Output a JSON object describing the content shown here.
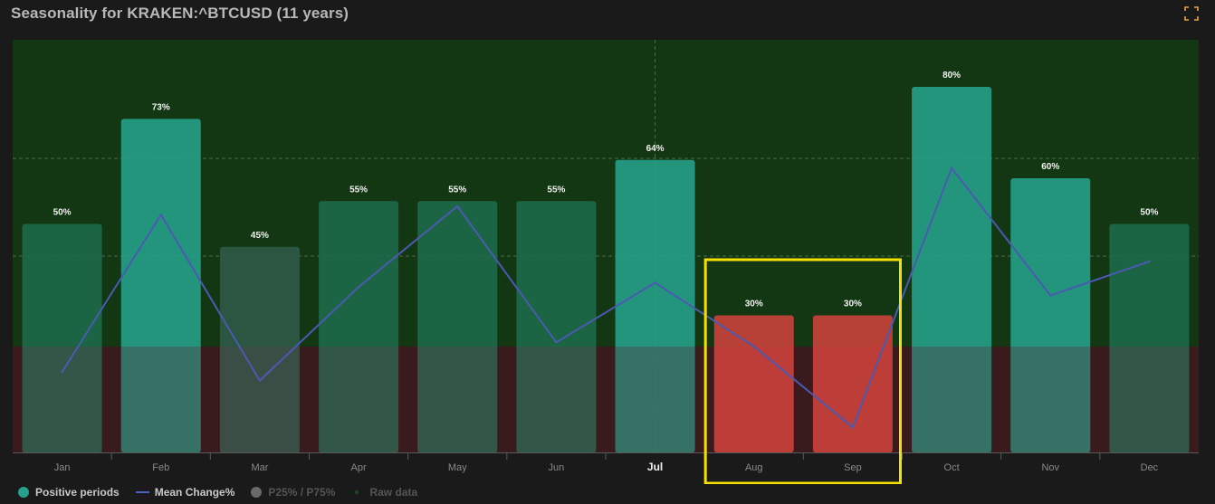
{
  "header": {
    "title": "Seasonality for KRAKEN:^BTCUSD (11 years)",
    "expand_icon": "expand-icon"
  },
  "colors": {
    "positive_bar": "#26a08a",
    "neutral_bar": "#1e6a4a",
    "negative_bar": "#d5433e",
    "mean_line": "#4a5ab0",
    "bg_positive": "#133613",
    "bg_negative": "#3a1b1d",
    "highlight": "#f5e003"
  },
  "legend": {
    "positive": "Positive periods",
    "mean": "Mean Change%",
    "percentiles": "P25% / P75%",
    "raw": "Raw data"
  },
  "chart_data": {
    "type": "bar",
    "categories": [
      "Jan",
      "Feb",
      "Mar",
      "Apr",
      "May",
      "Jun",
      "Jul",
      "Aug",
      "Sep",
      "Oct",
      "Nov",
      "Dec"
    ],
    "highlighted_category": "Jul",
    "series": [
      {
        "name": "Positive periods",
        "values": [
          50,
          73,
          45,
          55,
          55,
          55,
          64,
          30,
          30,
          80,
          60,
          50
        ],
        "labels": [
          "50%",
          "73%",
          "45%",
          "55%",
          "55%",
          "55%",
          "64%",
          "30%",
          "30%",
          "80%",
          "60%",
          "50%"
        ]
      },
      {
        "name": "Mean Change%",
        "values": [
          -6,
          31,
          -8,
          14,
          33,
          1,
          15,
          0,
          -19,
          42,
          12,
          20
        ]
      }
    ],
    "annotation": {
      "type": "rectangle",
      "categories": [
        "Aug",
        "Sep"
      ]
    }
  }
}
